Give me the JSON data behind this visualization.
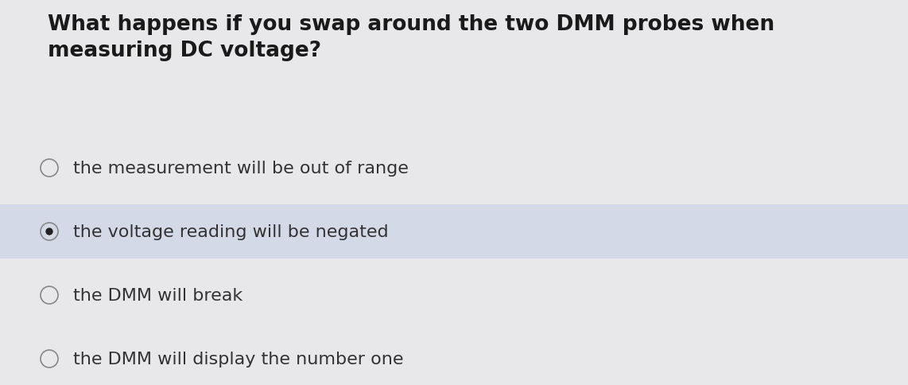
{
  "question": "What happens if you swap around the two DMM probes when\nmeasuring DC voltage?",
  "options": [
    "the measurement will be out of range",
    "the voltage reading will be negated",
    "the DMM will break",
    "the DMM will display the number one"
  ],
  "selected_index": 1,
  "background_color": "#e8e8ea",
  "selected_bg_color": "#d4d9e8",
  "question_fontsize": 19,
  "option_fontsize": 16,
  "question_color": "#1a1a1a",
  "option_color": "#333333",
  "radio_edge_color": "#888888",
  "radio_linewidth": 1.2,
  "selected_dot_color": "#222222",
  "fig_width": 11.42,
  "fig_height": 4.85,
  "dpi": 100
}
